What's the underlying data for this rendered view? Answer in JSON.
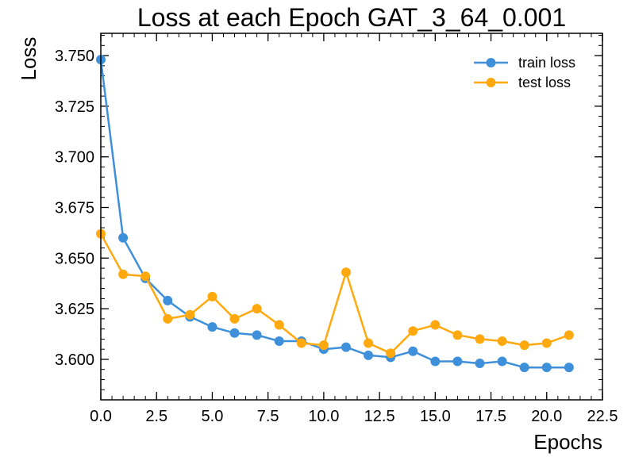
{
  "chart_data": {
    "type": "line",
    "title": "Loss at each Epoch GAT_3_64_0.001",
    "xlabel": "Epochs",
    "ylabel": "Loss",
    "xlim": [
      0,
      22.5
    ],
    "ylim": [
      3.58,
      3.761
    ],
    "x_ticks": [
      0,
      2.5,
      5,
      7.5,
      10,
      12.5,
      15,
      17.5,
      20,
      22.5
    ],
    "x_tick_labels": [
      "0.0",
      "2.5",
      "5.0",
      "7.5",
      "10.0",
      "12.5",
      "15.0",
      "17.5",
      "20.0",
      "22.5"
    ],
    "y_ticks": [
      3.6,
      3.625,
      3.65,
      3.675,
      3.7,
      3.725,
      3.75
    ],
    "y_tick_labels": [
      "3.600",
      "3.625",
      "3.650",
      "3.675",
      "3.700",
      "3.725",
      "3.750"
    ],
    "x_minor_step": 0.5,
    "y_minor_step": 0.005,
    "grid": false,
    "legend_position": "top-right",
    "x": [
      0,
      1,
      2,
      3,
      4,
      5,
      6,
      7,
      8,
      9,
      10,
      11,
      12,
      13,
      14,
      15,
      16,
      17,
      18,
      19,
      20,
      21
    ],
    "series": [
      {
        "name": "train loss",
        "color": "#3f90da",
        "values": [
          3.748,
          3.66,
          3.64,
          3.629,
          3.621,
          3.616,
          3.613,
          3.612,
          3.609,
          3.609,
          3.605,
          3.606,
          3.602,
          3.601,
          3.604,
          3.599,
          3.599,
          3.598,
          3.599,
          3.596,
          3.596,
          3.596
        ]
      },
      {
        "name": "test loss",
        "color": "#ffa90e",
        "values": [
          3.662,
          3.642,
          3.641,
          3.62,
          3.622,
          3.631,
          3.62,
          3.625,
          3.617,
          3.608,
          3.607,
          3.643,
          3.608,
          3.603,
          3.614,
          3.617,
          3.612,
          3.61,
          3.609,
          3.607,
          3.608,
          3.612
        ]
      }
    ]
  }
}
